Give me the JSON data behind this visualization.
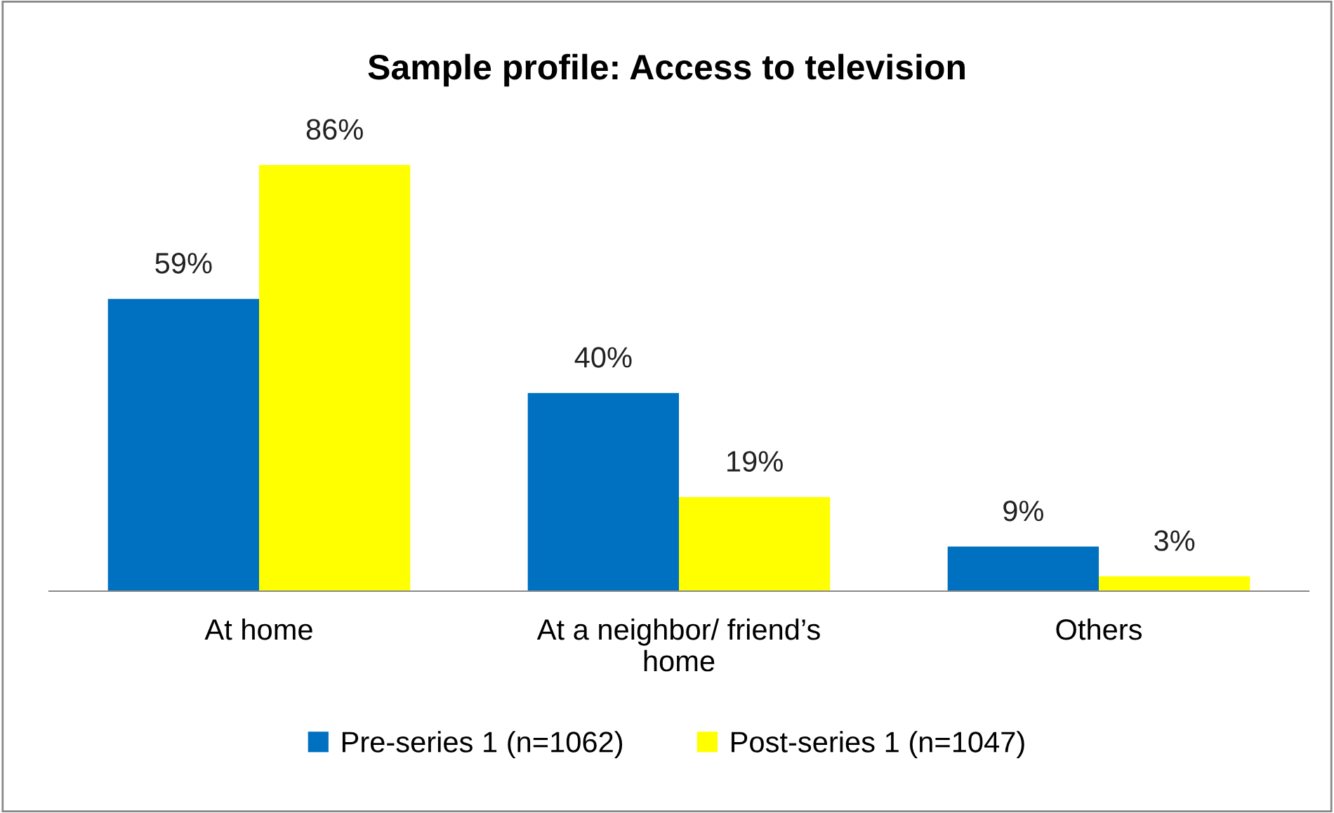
{
  "chart_data": {
    "type": "bar",
    "title": "Sample profile: Access to television",
    "categories": [
      "At home",
      "At a neighbor/ friend’s\nhome",
      "Others"
    ],
    "series": [
      {
        "name": "Pre-series 1 (n=1062)",
        "color": "#0070c0",
        "values": [
          59,
          40,
          9
        ],
        "value_labels": [
          "59%",
          "40%",
          "9%"
        ]
      },
      {
        "name": "Post-series 1 (n=1047)",
        "color": "#ffff00",
        "values": [
          86,
          19,
          3
        ],
        "value_labels": [
          "86%",
          "19%",
          "3%"
        ]
      }
    ],
    "grid": false,
    "legend": "bottom"
  }
}
